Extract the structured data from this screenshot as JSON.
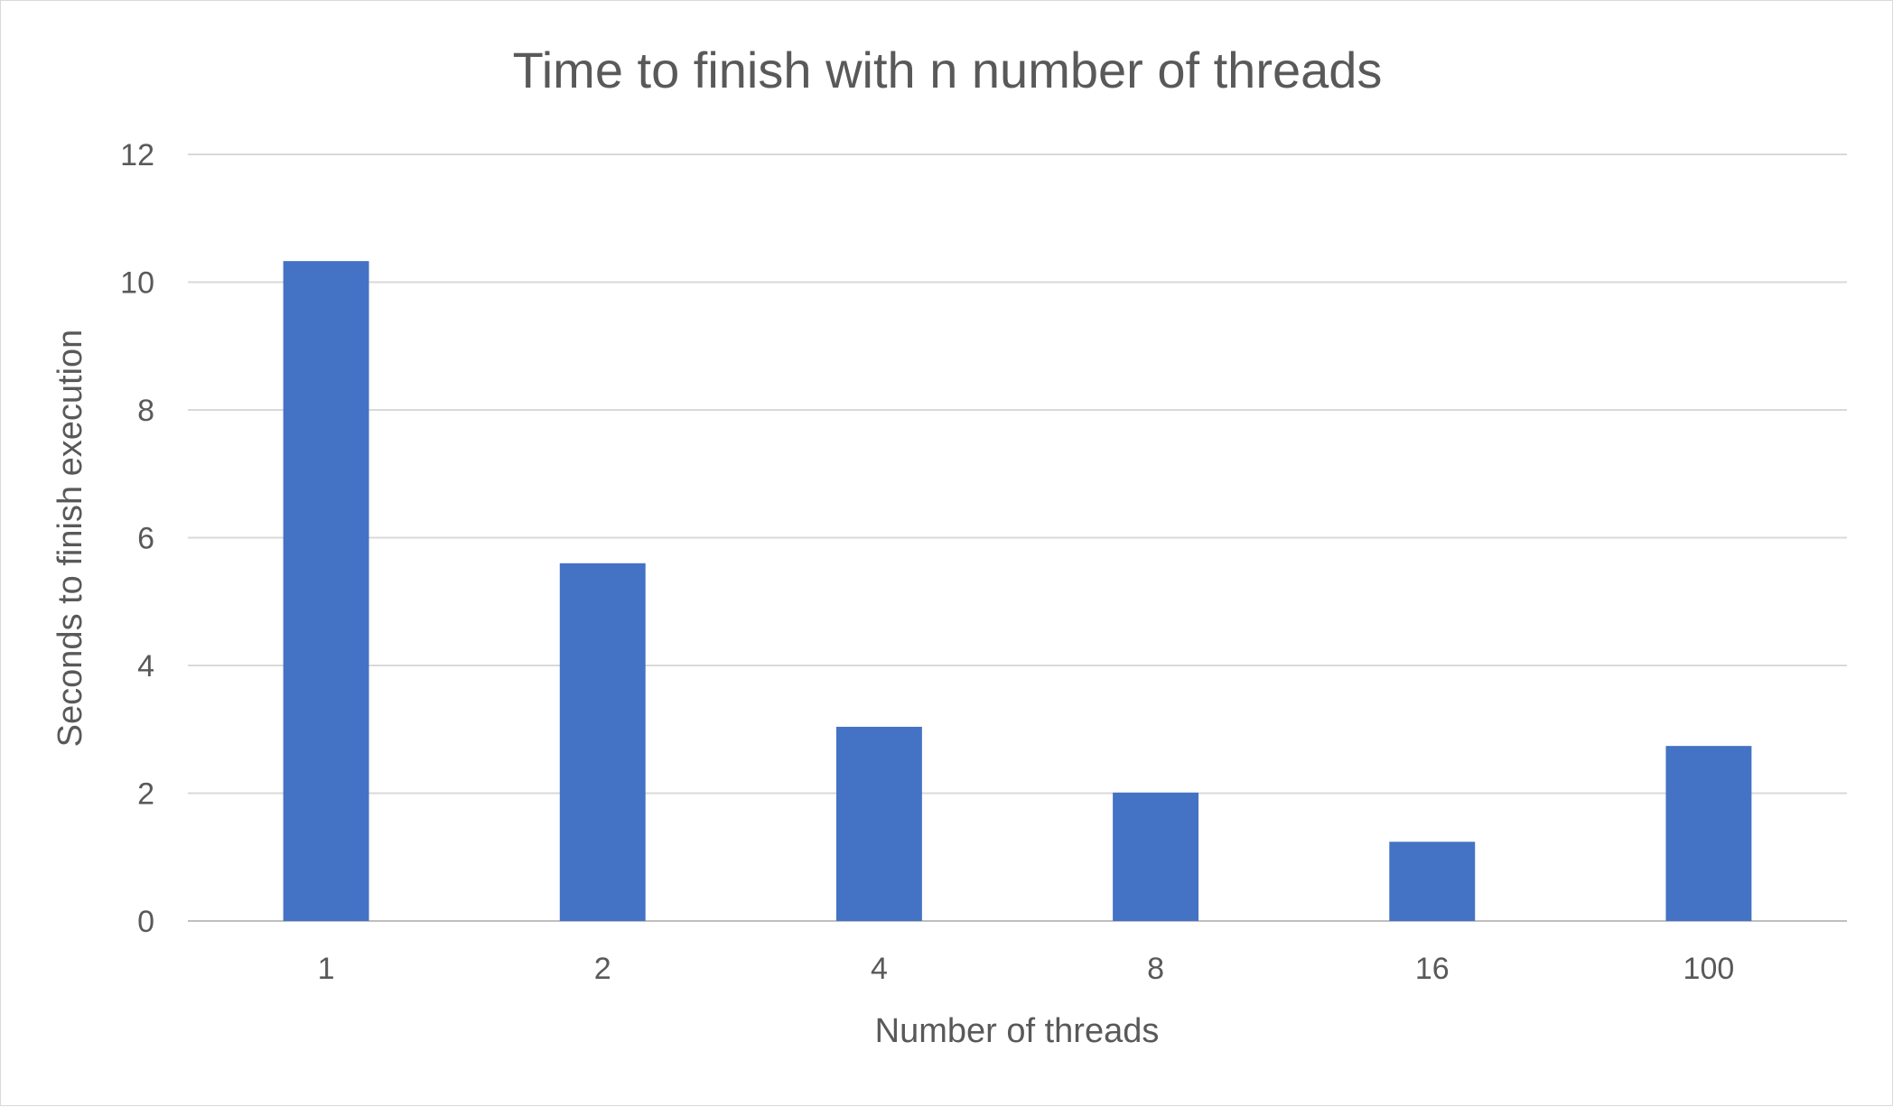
{
  "chart_data": {
    "type": "bar",
    "title": "Time to finish with n number of threads",
    "xlabel": "Number of threads",
    "ylabel": "Seconds to finish execution",
    "categories": [
      "1",
      "2",
      "4",
      "8",
      "16",
      "100"
    ],
    "values": [
      10.33,
      5.6,
      3.04,
      2.01,
      1.24,
      2.74
    ],
    "ylim": [
      0,
      12
    ],
    "yticks": [
      "0",
      "2",
      "4",
      "6",
      "8",
      "10",
      "12"
    ],
    "grid": true,
    "bar_color": "#4472C4"
  }
}
